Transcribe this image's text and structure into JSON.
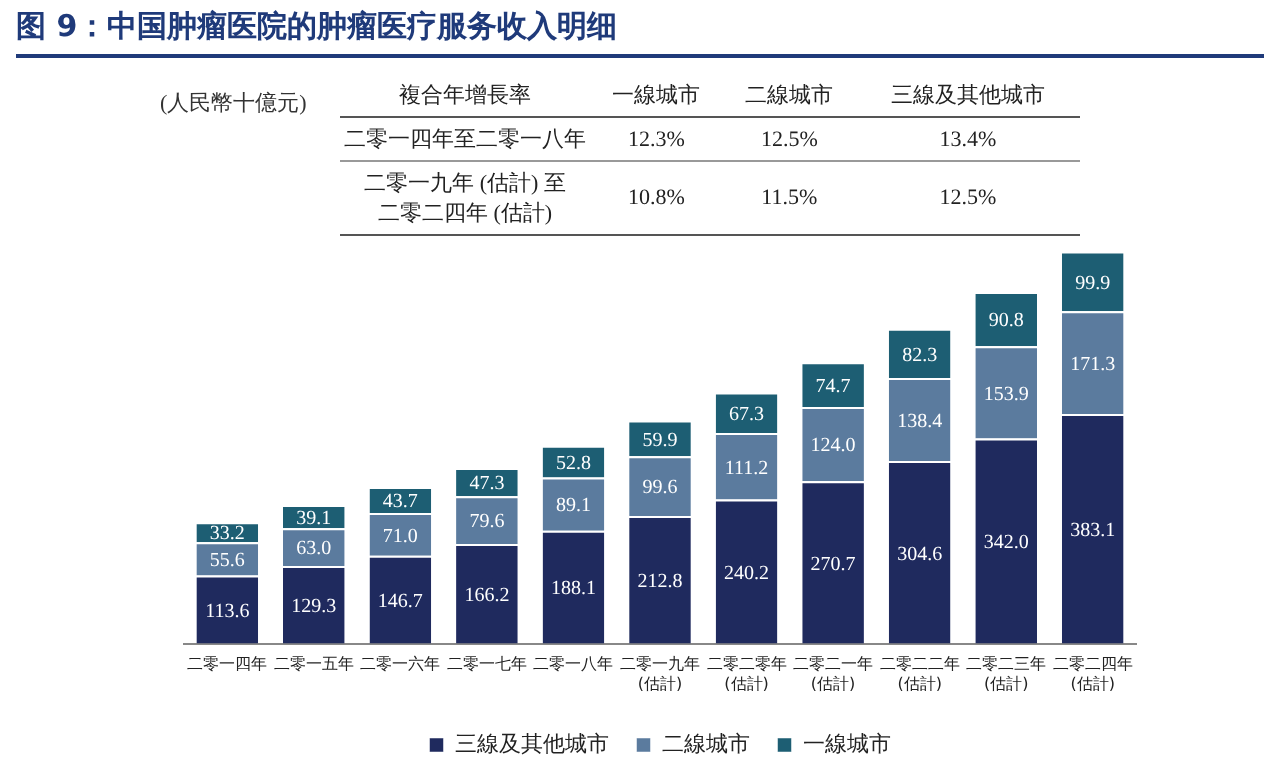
{
  "chart_data": {
    "type": "bar",
    "stacked": true,
    "legend": "bottom",
    "grid": false,
    "title": "图 9：中国肿瘤医院的肿瘤医疗服务收入明细",
    "categories": [
      "二零一四年",
      "二零一五年",
      "二零一六年",
      "二零一七年",
      "二零一八年",
      "二零一九年\n(估計)",
      "二零二零年\n(估計)",
      "二零二一年\n(估計)",
      "二零二二年\n(估計)",
      "二零二三年\n(估計)",
      "二零二四年\n(估計)"
    ],
    "series": [
      {
        "name": "三線及其他城市",
        "color": "#1f2a5e",
        "values": [
          113.6,
          129.3,
          146.7,
          166.2,
          188.1,
          212.8,
          240.2,
          270.7,
          304.6,
          342.0,
          383.1
        ],
        "value_labels": [
          "113.6",
          "129.3",
          "146.7",
          "166.2",
          "188.1",
          "212.8",
          "240.2",
          "270.7",
          "304.6",
          "342.0",
          "383.1"
        ]
      },
      {
        "name": "二線城市",
        "color": "#5b7b9e",
        "values": [
          55.6,
          63.0,
          71.0,
          79.6,
          89.1,
          99.6,
          111.2,
          124.0,
          138.4,
          153.9,
          171.3
        ],
        "value_labels": [
          "55.6",
          "63.0",
          "71.0",
          "79.6",
          "89.1",
          "99.6",
          "111.2",
          "124.0",
          "138.4",
          "153.9",
          "171.3"
        ]
      },
      {
        "name": "一線城市",
        "color": "#1d5e73",
        "values": [
          33.2,
          39.1,
          43.7,
          47.3,
          52.8,
          59.9,
          67.3,
          74.7,
          82.3,
          90.8,
          99.9
        ],
        "value_labels": [
          "33.2",
          "39.1",
          "43.7",
          "47.3",
          "52.8",
          "59.9",
          "67.3",
          "74.7",
          "82.3",
          "90.8",
          "99.9"
        ]
      }
    ],
    "annotations": [
      "(人民幣十億元)",
      "複合年增長率",
      "一線城市",
      "二線城市",
      "三線及其他城市",
      "二零一四年至二零一八年",
      "12.3%",
      "12.5%",
      "13.4%",
      "二零一九年 (估計) 至二零二四年 (估計)",
      "10.8%",
      "11.5%",
      "12.5%"
    ]
  }
}
